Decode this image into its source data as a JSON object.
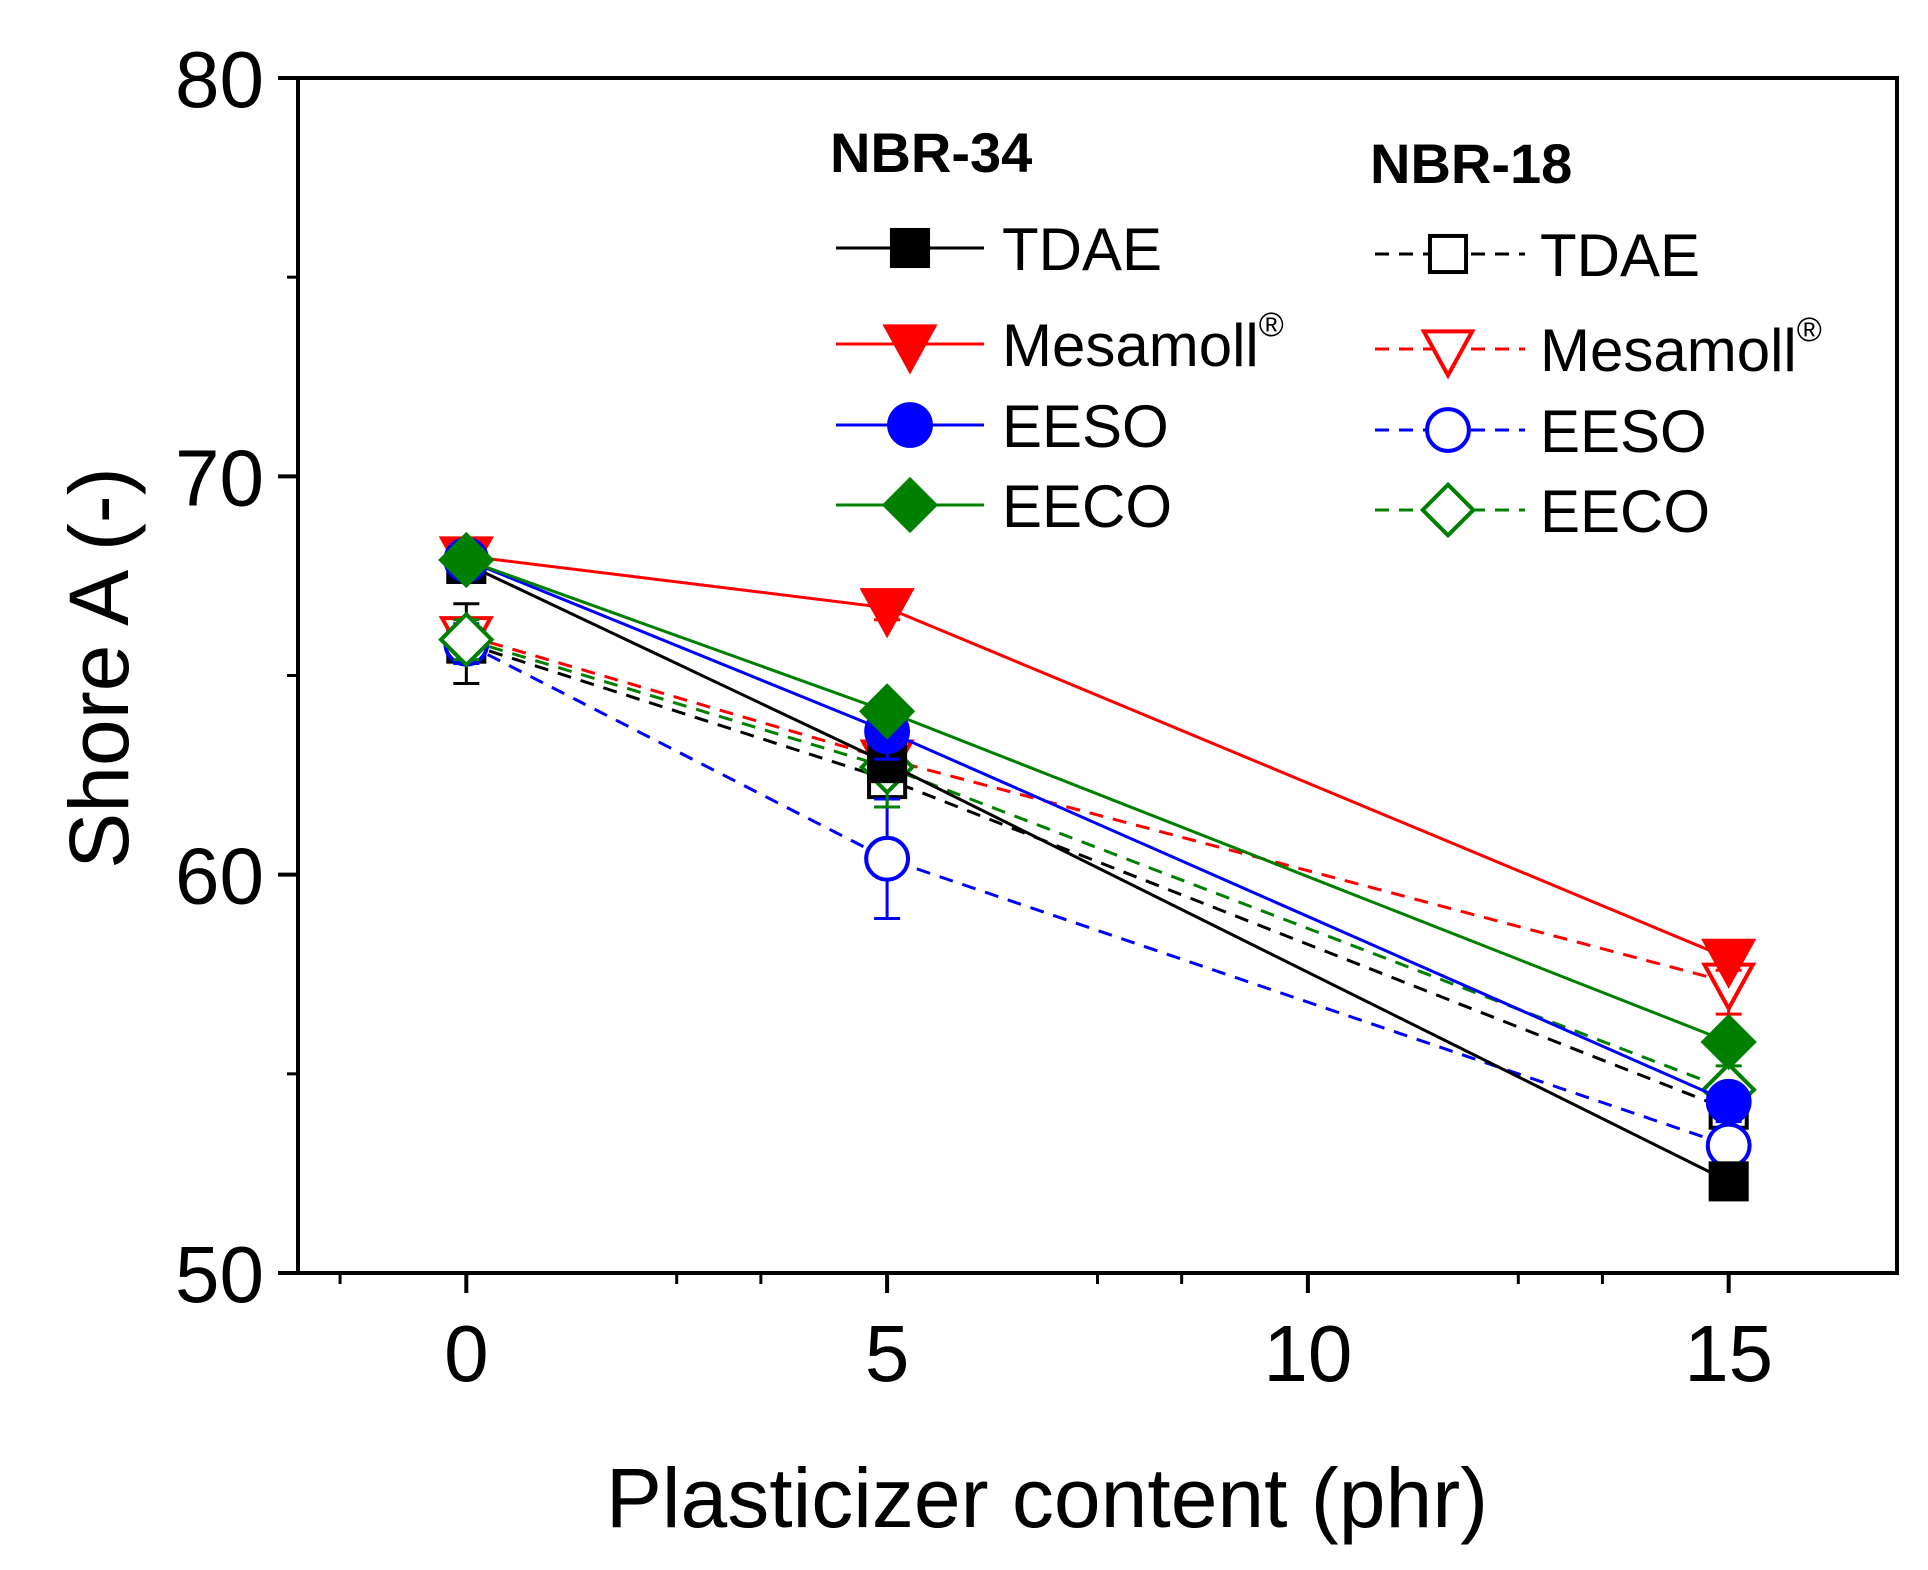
{
  "chart_data": {
    "type": "line",
    "title": "",
    "xlabel": "Plasticizer content (phr)",
    "ylabel": "Shore A (-)",
    "xlim": [
      -2,
      17
    ],
    "ylim": [
      50,
      80
    ],
    "xticks": [
      0,
      5,
      10,
      15
    ],
    "yticks": [
      50,
      60,
      70,
      80
    ],
    "grid": false,
    "legend": {
      "placement": "top-right",
      "groups": [
        {
          "title": "NBR-34",
          "entries": [
            "TDAE",
            "Mesamoll",
            "EESO",
            "EECO"
          ]
        },
        {
          "title": "NBR-18",
          "entries": [
            "TDAE",
            "Mesamoll",
            "EESO",
            "EECO"
          ]
        }
      ],
      "superscript": "®"
    },
    "x": [
      0,
      5,
      15
    ],
    "series": [
      {
        "name": "TDAE",
        "group": "NBR-34",
        "color": "#000000",
        "marker": "square",
        "filled": true,
        "dashed": false,
        "values": [
          67.8,
          62.8,
          52.3
        ],
        "errors": [
          0.3,
          0.3,
          0.3
        ]
      },
      {
        "name": "Mesamoll",
        "group": "NBR-34",
        "color": "#ff0000",
        "marker": "triangle-down",
        "filled": true,
        "dashed": false,
        "values": [
          68.0,
          66.7,
          57.9
        ],
        "errors": [
          0.3,
          0.3,
          0.3
        ]
      },
      {
        "name": "EESO",
        "group": "NBR-34",
        "color": "#0000ff",
        "marker": "circle",
        "filled": true,
        "dashed": false,
        "values": [
          67.9,
          63.6,
          54.3
        ],
        "errors": [
          0.3,
          0.7,
          0.4
        ]
      },
      {
        "name": "EECO",
        "group": "NBR-34",
        "color": "#008000",
        "marker": "diamond",
        "filled": true,
        "dashed": false,
        "values": [
          67.9,
          64.1,
          55.8
        ],
        "errors": [
          0.3,
          0.3,
          0.3
        ]
      },
      {
        "name": "TDAE",
        "group": "NBR-18",
        "color": "#000000",
        "marker": "square",
        "filled": false,
        "dashed": true,
        "values": [
          65.8,
          62.4,
          54.1
        ],
        "errors": [
          1.0,
          0.4,
          0.8
        ]
      },
      {
        "name": "Mesamoll",
        "group": "NBR-18",
        "color": "#ff0000",
        "marker": "triangle-down",
        "filled": false,
        "dashed": true,
        "values": [
          66.0,
          62.9,
          57.3
        ],
        "errors": [
          0.3,
          0.3,
          0.8
        ]
      },
      {
        "name": "EESO",
        "group": "NBR-18",
        "color": "#0000ff",
        "marker": "circle",
        "filled": false,
        "dashed": true,
        "values": [
          65.8,
          60.4,
          53.2
        ],
        "errors": [
          0.5,
          1.5,
          0.6
        ]
      },
      {
        "name": "EECO",
        "group": "NBR-18",
        "color": "#008000",
        "marker": "diamond",
        "filled": false,
        "dashed": true,
        "values": [
          65.9,
          62.7,
          54.6
        ],
        "errors": [
          0.5,
          1.0,
          0.6
        ]
      }
    ]
  }
}
